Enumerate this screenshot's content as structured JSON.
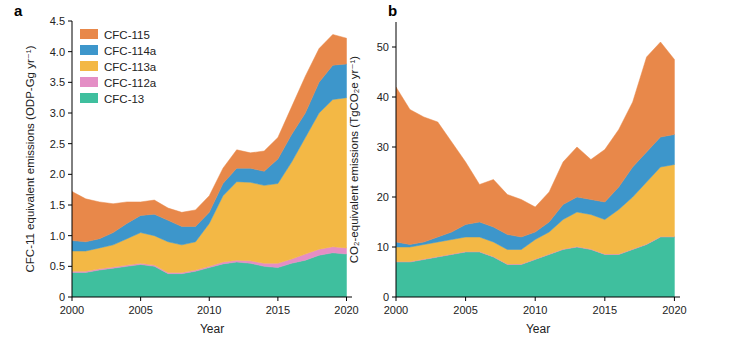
{
  "chart_data": [
    {
      "type": "area",
      "stacked": true,
      "title": "a",
      "x_label": "Year",
      "y_label": "CFC-11 equivalent emissions (ODP-Gg yr⁻¹)",
      "x": [
        2000,
        2001,
        2002,
        2003,
        2004,
        2005,
        2006,
        2007,
        2008,
        2009,
        2010,
        2011,
        2012,
        2013,
        2014,
        2015,
        2016,
        2017,
        2018,
        2019,
        2020
      ],
      "xlim": [
        2000,
        2020.4
      ],
      "xticks": [
        2000,
        2005,
        2010,
        2015,
        2020
      ],
      "ylim": [
        0,
        4.5
      ],
      "yticks": [
        0,
        0.5,
        {
          "value": 1,
          "label": "1.0"
        },
        1.5,
        {
          "value": 2,
          "label": "2.0"
        },
        2.5,
        {
          "value": 3,
          "label": "3.0"
        },
        3.5,
        {
          "value": 4,
          "label": "4.0"
        },
        4.5
      ],
      "legend": "top-left",
      "series": [
        {
          "name": "CFC-13",
          "color": "#3fbf9e",
          "values": [
            0.4,
            0.4,
            0.44,
            0.47,
            0.5,
            0.53,
            0.5,
            0.38,
            0.38,
            0.42,
            0.48,
            0.54,
            0.57,
            0.55,
            0.5,
            0.48,
            0.55,
            0.6,
            0.68,
            0.72,
            0.7
          ]
        },
        {
          "name": "CFC-112a",
          "color": "#e48ec5",
          "values": [
            0.02,
            0.02,
            0.02,
            0.02,
            0.02,
            0.02,
            0.02,
            0.02,
            0.02,
            0.02,
            0.02,
            0.03,
            0.03,
            0.04,
            0.05,
            0.07,
            0.07,
            0.1,
            0.1,
            0.1,
            0.1
          ]
        },
        {
          "name": "CFC-113a",
          "color": "#f3b845",
          "values": [
            0.33,
            0.33,
            0.34,
            0.36,
            0.43,
            0.5,
            0.48,
            0.5,
            0.45,
            0.46,
            0.7,
            1.08,
            1.28,
            1.28,
            1.27,
            1.3,
            1.58,
            1.9,
            2.22,
            2.4,
            2.45
          ]
        },
        {
          "name": "CFC-114a",
          "color": "#3d96cb",
          "values": [
            0.17,
            0.15,
            0.15,
            0.2,
            0.25,
            0.28,
            0.35,
            0.35,
            0.3,
            0.25,
            0.18,
            0.2,
            0.22,
            0.23,
            0.23,
            0.4,
            0.45,
            0.4,
            0.5,
            0.56,
            0.55
          ]
        },
        {
          "name": "CFC-115",
          "color": "#e8884a",
          "values": [
            0.8,
            0.7,
            0.6,
            0.47,
            0.35,
            0.22,
            0.23,
            0.2,
            0.23,
            0.27,
            0.27,
            0.25,
            0.3,
            0.25,
            0.33,
            0.35,
            0.45,
            0.6,
            0.55,
            0.5,
            0.42
          ]
        }
      ]
    },
    {
      "type": "area",
      "stacked": true,
      "title": "b",
      "x_label": "Year",
      "y_label": "CO₂-equivalent emissions (TgCO₂e yr⁻¹)",
      "x": [
        2000,
        2001,
        2002,
        2003,
        2004,
        2005,
        2006,
        2007,
        2008,
        2009,
        2010,
        2011,
        2012,
        2013,
        2014,
        2015,
        2016,
        2017,
        2018,
        2019,
        2020
      ],
      "xlim": [
        2000,
        2020.4
      ],
      "xticks": [
        2000,
        2005,
        2010,
        2015,
        2020
      ],
      "ylim": [
        0,
        55
      ],
      "yticks": [
        0,
        10,
        20,
        30,
        40,
        50
      ],
      "legend": false,
      "series": [
        {
          "name": "CFC-13",
          "color": "#3fbf9e",
          "values": [
            7,
            7,
            7.5,
            8,
            8.5,
            9,
            9,
            8,
            6.5,
            6.5,
            7.5,
            8.5,
            9.5,
            10,
            9.5,
            8.5,
            8.5,
            9.5,
            10.5,
            12,
            12
          ]
        },
        {
          "name": "CFC-112a",
          "color": "#e48ec5",
          "values": [
            0.1,
            0.1,
            0.1,
            0.1,
            0.1,
            0.1,
            0.1,
            0.1,
            0.1,
            0.1,
            0.1,
            0.1,
            0.1,
            0.1,
            0.1,
            0.1,
            0.1,
            0.1,
            0.1,
            0.1,
            0.1
          ]
        },
        {
          "name": "CFC-113a",
          "color": "#f3b845",
          "values": [
            2.9,
            2.9,
            2.9,
            2.9,
            2.9,
            2.9,
            2.9,
            2.9,
            2.9,
            2.9,
            3.9,
            4.4,
            5.9,
            6.9,
            6.9,
            6.9,
            8.9,
            10.4,
            12.4,
            13.9,
            14.4
          ]
        },
        {
          "name": "CFC-114a",
          "color": "#3d96cb",
          "values": [
            1,
            0.5,
            0.5,
            1,
            1.5,
            2.5,
            3,
            3,
            3,
            2.5,
            1.5,
            2,
            3,
            3,
            3,
            3.5,
            4.5,
            6,
            6,
            6,
            6
          ]
        },
        {
          "name": "CFC-115",
          "color": "#e8884a",
          "values": [
            31,
            27,
            25,
            23,
            18,
            12.5,
            7.5,
            9.5,
            8,
            7.5,
            5,
            6,
            8.5,
            10,
            8,
            10.5,
            11.5,
            13,
            19,
            19,
            15
          ]
        }
      ]
    }
  ]
}
